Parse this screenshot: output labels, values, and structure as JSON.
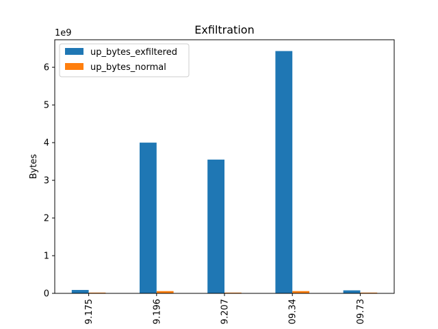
{
  "chart_data": {
    "type": "bar",
    "title": "Exfiltration",
    "xlabel": "",
    "ylabel": "Bytes",
    "y_offset_label": "1e9",
    "ylim": [
      0,
      6.73
    ],
    "yticks": [
      0,
      1,
      2,
      3,
      4,
      5,
      6
    ],
    "y_unit_multiplier": 1000000000,
    "categories": [
      "9.175",
      "9.196",
      "9.207",
      "09.34",
      "09.73"
    ],
    "legend_position": "upper-left",
    "grid": false,
    "series": [
      {
        "name": "up_bytes_exfiltered",
        "color": "#1f77b4",
        "values": [
          0.09,
          4.0,
          3.55,
          6.43,
          0.08
        ]
      },
      {
        "name": "up_bytes_normal",
        "color": "#ff7f0e",
        "values": [
          0.02,
          0.06,
          0.02,
          0.06,
          0.02
        ]
      }
    ]
  }
}
